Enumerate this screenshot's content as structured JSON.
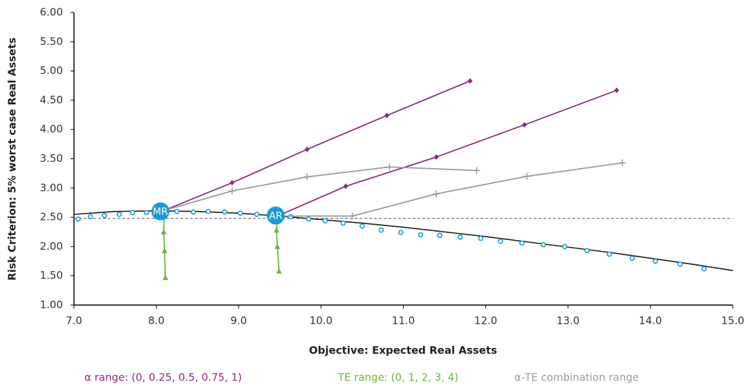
{
  "chart_data": {
    "type": "line",
    "x_label": "Objective: Expected Real Assets",
    "y_label": "Risk Criterion: 5% worst case Real Assets",
    "xlim": [
      7.0,
      15.0
    ],
    "ylim": [
      1.0,
      6.0
    ],
    "xticks": [
      {
        "value": 7,
        "label": "7.0"
      },
      {
        "value": 8,
        "label": "8.0"
      },
      {
        "value": 9,
        "label": "9.0"
      },
      {
        "value": 10,
        "label": "10.0"
      },
      {
        "value": 11,
        "label": "11.0"
      },
      {
        "value": 12,
        "label": "12.0"
      },
      {
        "value": 13,
        "label": "13.0"
      },
      {
        "value": 14,
        "label": "14.0"
      },
      {
        "value": 15,
        "label": "15.0"
      }
    ],
    "yticks": [
      {
        "value": 1,
        "label": "1.00"
      },
      {
        "value": 1.5,
        "label": "1.50"
      },
      {
        "value": 2,
        "label": "2.00"
      },
      {
        "value": 2.5,
        "label": "2.50"
      },
      {
        "value": 3,
        "label": "3.00"
      },
      {
        "value": 3.5,
        "label": "3.50"
      },
      {
        "value": 4,
        "label": "4.00"
      },
      {
        "value": 4.5,
        "label": "4.50"
      },
      {
        "value": 5,
        "label": "5.00"
      },
      {
        "value": 5.5,
        "label": "5.50"
      },
      {
        "value": 6,
        "label": "6.00"
      }
    ],
    "hline": 2.48,
    "legend": [
      {
        "text": "α range: (0, 0.25, 0.5, 0.75, 1)",
        "color": "#8b2a7f"
      },
      {
        "text": "TE range: (0, 1, 2, 3, 4)",
        "color": "#6db33f"
      },
      {
        "text": "α-TE combination range",
        "color": "#9a9a9a"
      }
    ],
    "series": [
      {
        "color": "#1a1a1a",
        "marker": "none",
        "line": true,
        "x": [
          7.0,
          7.5,
          8.0,
          8.5,
          9.0,
          9.5,
          10.0,
          10.5,
          11.0,
          11.5,
          12.0,
          12.5,
          13.0,
          13.5,
          14.0,
          14.5,
          15.0
        ],
        "values": [
          2.55,
          2.6,
          2.61,
          2.6,
          2.57,
          2.52,
          2.46,
          2.4,
          2.33,
          2.25,
          2.17,
          2.08,
          1.99,
          1.9,
          1.8,
          1.7,
          1.59
        ]
      },
      {
        "color": "#1a9ad6",
        "marker": "circle",
        "line": false,
        "x": [
          7.05,
          7.2,
          7.37,
          7.55,
          7.71,
          7.88,
          8.25,
          8.45,
          8.63,
          8.83,
          9.02,
          9.22,
          9.63,
          9.85,
          10.05,
          10.27,
          10.5,
          10.73,
          10.97,
          11.21,
          11.44,
          11.69,
          11.94,
          12.18,
          12.44,
          12.7,
          12.96,
          13.23,
          13.5,
          13.78,
          14.06,
          14.36,
          14.65
        ],
        "values": [
          2.47,
          2.51,
          2.53,
          2.55,
          2.58,
          2.58,
          2.6,
          2.59,
          2.6,
          2.59,
          2.57,
          2.55,
          2.51,
          2.47,
          2.44,
          2.4,
          2.35,
          2.28,
          2.24,
          2.2,
          2.19,
          2.16,
          2.14,
          2.09,
          2.06,
          2.03,
          2.0,
          1.93,
          1.87,
          1.8,
          1.75,
          1.7,
          1.62
        ]
      },
      {
        "color": "#8b2a7f",
        "marker": "diamond",
        "line": true,
        "x": [
          8.1,
          8.92,
          9.83,
          10.8,
          11.81
        ],
        "values": [
          2.62,
          3.09,
          3.66,
          4.24,
          4.83
        ]
      },
      {
        "color": "#8b2a7f",
        "marker": "diamond",
        "line": true,
        "x": [
          9.47,
          10.3,
          11.4,
          12.47,
          13.59
        ],
        "values": [
          2.52,
          3.03,
          3.53,
          4.08,
          4.67
        ]
      },
      {
        "color": "#9a9a9a",
        "marker": "plus",
        "line": true,
        "x": [
          8.1,
          8.92,
          9.83,
          10.83,
          11.89
        ],
        "values": [
          2.62,
          2.95,
          3.19,
          3.36,
          3.3
        ]
      },
      {
        "color": "#9a9a9a",
        "marker": "plus",
        "line": true,
        "x": [
          9.47,
          10.38,
          11.4,
          12.5,
          13.66
        ],
        "values": [
          2.52,
          2.52,
          2.9,
          3.2,
          3.43
        ]
      },
      {
        "color": "#6db33f",
        "marker": "triangle",
        "line": true,
        "x": [
          8.1,
          8.09,
          8.1,
          8.11
        ],
        "values": [
          2.6,
          2.25,
          1.93,
          1.47
        ]
      },
      {
        "color": "#6db33f",
        "marker": "triangle",
        "line": true,
        "x": [
          9.47,
          9.46,
          9.47,
          9.49
        ],
        "values": [
          2.52,
          2.28,
          2.0,
          1.58
        ]
      }
    ],
    "points": [
      {
        "label": "MR",
        "x": 8.05,
        "y": 2.6,
        "color": "#1a9ad6"
      },
      {
        "label": "AR",
        "x": 9.45,
        "y": 2.53,
        "color": "#1a9ad6"
      }
    ]
  }
}
